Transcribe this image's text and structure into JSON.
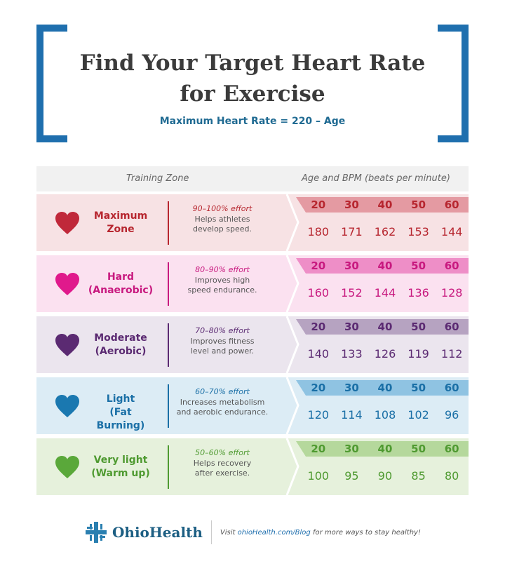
{
  "header": {
    "title_line1": "Find Your Target Heart Rate",
    "title_line2": "for Exercise",
    "subtitle": "Maximum Heart Rate = 220 – Age",
    "bracket_color": "#1f6fae"
  },
  "table_header": {
    "zone": "Training Zone",
    "age_bpm": "Age and BPM (beats per minute)"
  },
  "ages": [
    "20",
    "30",
    "40",
    "50",
    "60"
  ],
  "zones": [
    {
      "name1": "Maximum",
      "name2": "Zone",
      "effort": "90–100% effort",
      "desc1": "Helps athletes",
      "desc2": "develop speed.",
      "bpm": [
        "180",
        "171",
        "162",
        "153",
        "144"
      ],
      "bg": "#f7e2e4",
      "accent": "#b7262f",
      "strip": "#e49aa2",
      "heart": "#c0283a"
    },
    {
      "name1": "Hard",
      "name2": "(Anaerobic)",
      "effort": "80–90% effort",
      "desc1": "Improves high",
      "desc2": "speed endurance.",
      "bpm": [
        "160",
        "152",
        "144",
        "136",
        "128"
      ],
      "bg": "#fbe1f0",
      "accent": "#c8197f",
      "strip": "#ee8ec7",
      "heart": "#e0198c"
    },
    {
      "name1": "Moderate",
      "name2": "(Aerobic)",
      "effort": "70–80% effort",
      "desc1": "Improves fitness",
      "desc2": "level and power.",
      "bpm": [
        "140",
        "133",
        "126",
        "119",
        "112"
      ],
      "bg": "#ebe5ee",
      "accent": "#5b2a72",
      "strip": "#b6a3c1",
      "heart": "#5b2a72"
    },
    {
      "name1": "Light",
      "name2": "(Fat Burning)",
      "effort": "60–70% effort",
      "desc1": "Increases metabolism",
      "desc2": "and aerobic endurance.",
      "bpm": [
        "120",
        "114",
        "108",
        "102",
        "96"
      ],
      "bg": "#dcecf5",
      "accent": "#1a6fa6",
      "strip": "#8fc3e2",
      "heart": "#1a78b0"
    },
    {
      "name1": "Very light",
      "name2": "(Warm up)",
      "effort": "50–60% effort",
      "desc1": "Helps recovery",
      "desc2": "after exercise.",
      "bpm": [
        "100",
        "95",
        "90",
        "85",
        "80"
      ],
      "bg": "#e6f1dc",
      "accent": "#4f9a31",
      "strip": "#b5d89c",
      "heart": "#5aa83a"
    }
  ],
  "footer": {
    "logo_text": "OhioHealth",
    "tag_pre": "Visit ",
    "tag_link": "ohioHealth.com/Blog",
    "tag_post": " for more ways to stay healthy!"
  }
}
